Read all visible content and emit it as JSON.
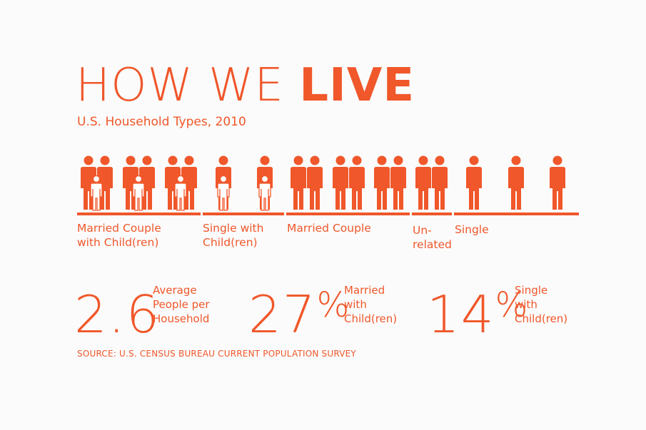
{
  "header": {
    "title_light": "HOW WE",
    "title_bold": "LIVE",
    "subtitle": "U.S. Household Types, 2010"
  },
  "colors": {
    "accent": "#f0572a",
    "child_fill": "#ffffff",
    "background": "#fbfbfb"
  },
  "households": [
    {
      "type": "married-with-children"
    },
    {
      "type": "married-with-children"
    },
    {
      "type": "married-with-children"
    },
    {
      "type": "single-with-children"
    },
    {
      "type": "single-with-children"
    },
    {
      "type": "married-couple"
    },
    {
      "type": "married-couple"
    },
    {
      "type": "married-couple"
    },
    {
      "type": "unrelated"
    },
    {
      "type": "single"
    },
    {
      "type": "single"
    },
    {
      "type": "single"
    }
  ],
  "groups": [
    {
      "label": "Married Couple\nwith Child(ren)"
    },
    {
      "label": "Single with\nChild(ren)"
    },
    {
      "label": "Married Couple"
    },
    {
      "label": "Un-\nrelated"
    },
    {
      "label": "Single"
    }
  ],
  "stats": [
    {
      "value": "2.6",
      "unit": "",
      "label": "Average\nPeople per\nHousehold"
    },
    {
      "value": "27",
      "unit": "%",
      "label": "Married\nwith\nChild(ren)"
    },
    {
      "value": "14",
      "unit": "%",
      "label": "Single\nwith\nChild(ren)"
    }
  ],
  "source": "SOURCE: U.S. CENSUS BUREAU CURRENT POPULATION SURVEY"
}
